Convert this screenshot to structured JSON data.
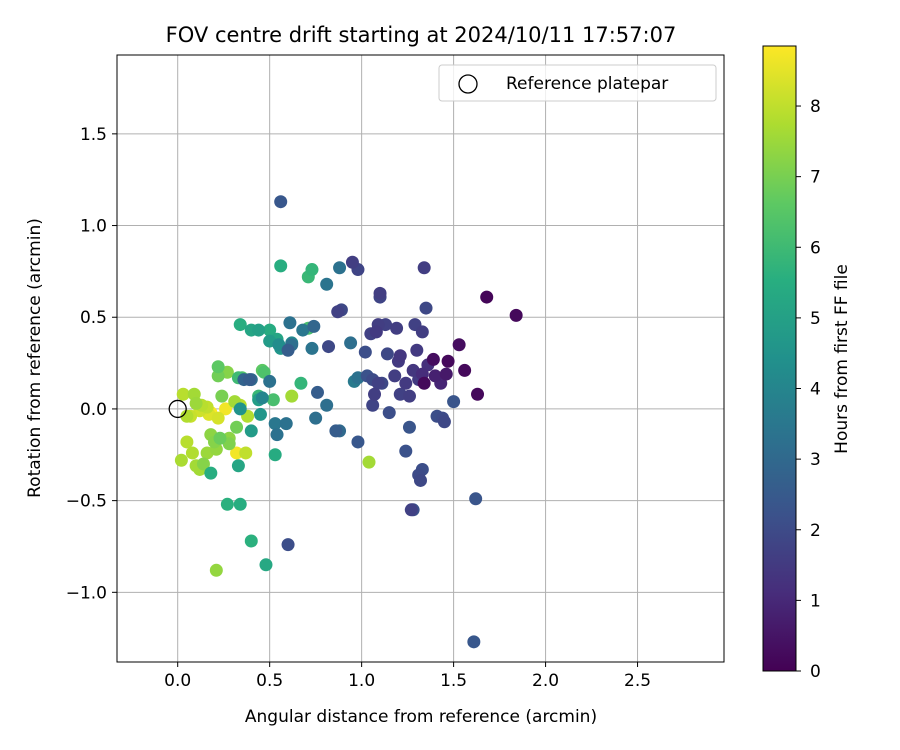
{
  "chart_data": {
    "type": "scatter",
    "title": "FOV centre drift starting at 2024/10/11 17:57:07",
    "xlabel": "Angular distance from reference (arcmin)",
    "ylabel": "Rotation from reference (arcmin)",
    "xlim": [
      -0.33,
      2.97
    ],
    "ylim": [
      -1.38,
      1.93
    ],
    "xticks": [
      0.0,
      0.5,
      1.0,
      1.5,
      2.0,
      2.5
    ],
    "xtick_labels": [
      "0.0",
      "0.5",
      "1.0",
      "1.5",
      "2.0",
      "2.5"
    ],
    "yticks": [
      -1.0,
      -0.5,
      0.0,
      0.5,
      1.0,
      1.5
    ],
    "ytick_labels": [
      "−1.0",
      "−0.5",
      "0.0",
      "0.5",
      "1.0",
      "1.5"
    ],
    "grid": true,
    "legend": {
      "position": "top-right",
      "entries": [
        "Reference platepar"
      ]
    },
    "reference_point": {
      "x": 0.0,
      "y": 0.0
    },
    "colorbar": {
      "label": "Hours from first FF file",
      "colormap": "viridis",
      "range": [
        0,
        8.85
      ],
      "ticks": [
        0,
        1,
        2,
        3,
        4,
        5,
        6,
        7,
        8
      ],
      "tick_labels": [
        "0",
        "1",
        "2",
        "3",
        "4",
        "5",
        "6",
        "7",
        "8"
      ]
    },
    "points": [
      [
        1.68,
        0.61,
        0.1
      ],
      [
        1.84,
        0.51,
        0.2
      ],
      [
        1.47,
        0.26,
        0.2
      ],
      [
        1.39,
        0.27,
        0.3
      ],
      [
        1.53,
        0.35,
        0.3
      ],
      [
        1.56,
        0.21,
        0.2
      ],
      [
        1.63,
        0.08,
        0.2
      ],
      [
        1.34,
        0.14,
        0.2
      ],
      [
        1.46,
        0.19,
        0.6
      ],
      [
        1.4,
        0.18,
        0.8
      ],
      [
        1.43,
        0.14,
        0.9
      ],
      [
        1.33,
        0.19,
        1.1
      ],
      [
        1.36,
        0.24,
        1.2
      ],
      [
        1.28,
        0.21,
        1.4
      ],
      [
        1.31,
        0.16,
        1.5
      ],
      [
        1.24,
        0.14,
        1.5
      ],
      [
        1.26,
        0.07,
        1.6
      ],
      [
        1.21,
        0.08,
        1.7
      ],
      [
        1.18,
        0.18,
        1.6
      ],
      [
        1.2,
        0.26,
        1.5
      ],
      [
        1.21,
        0.29,
        1.4
      ],
      [
        1.14,
        0.3,
        1.9
      ],
      [
        1.3,
        0.32,
        1.5
      ],
      [
        1.33,
        0.42,
        1.6
      ],
      [
        1.29,
        0.46,
        1.7
      ],
      [
        1.35,
        0.55,
        1.9
      ],
      [
        1.34,
        0.77,
        1.6
      ],
      [
        1.19,
        0.44,
        1.6
      ],
      [
        1.13,
        0.46,
        1.7
      ],
      [
        1.09,
        0.46,
        1.6
      ],
      [
        1.08,
        0.42,
        1.5
      ],
      [
        1.1,
        0.63,
        1.6
      ],
      [
        1.1,
        0.61,
        1.8
      ],
      [
        0.95,
        0.8,
        1.6
      ],
      [
        0.98,
        0.76,
        1.8
      ],
      [
        0.89,
        0.54,
        1.9
      ],
      [
        0.87,
        0.53,
        1.7
      ],
      [
        1.05,
        0.41,
        1.7
      ],
      [
        1.02,
        0.31,
        2.1
      ],
      [
        1.03,
        0.18,
        2.2
      ],
      [
        1.06,
        0.16,
        2.0
      ],
      [
        1.11,
        0.14,
        1.9
      ],
      [
        1.09,
        0.14,
        1.7
      ],
      [
        1.07,
        0.08,
        1.6
      ],
      [
        1.06,
        0.02,
        1.8
      ],
      [
        1.15,
        -0.02,
        2.1
      ],
      [
        1.24,
        -0.23,
        2.2
      ],
      [
        1.26,
        -0.1,
        2.3
      ],
      [
        1.31,
        -0.36,
        2.0
      ],
      [
        1.32,
        -0.39,
        1.9
      ],
      [
        1.33,
        -0.33,
        2.1
      ],
      [
        1.27,
        -0.55,
        1.7
      ],
      [
        1.28,
        -0.55,
        2.2
      ],
      [
        1.62,
        -0.49,
        2.3
      ],
      [
        1.61,
        -1.27,
        2.4
      ],
      [
        1.5,
        0.04,
        2.3
      ],
      [
        1.41,
        -0.04,
        2.1
      ],
      [
        1.45,
        -0.07,
        1.9
      ],
      [
        1.44,
        -0.05,
        2.0
      ],
      [
        0.98,
        -0.18,
        2.4
      ],
      [
        0.82,
        0.34,
        1.9
      ],
      [
        0.86,
        -0.12,
        2.6
      ],
      [
        0.88,
        -0.12,
        3.0
      ],
      [
        0.81,
        0.02,
        3.2
      ],
      [
        0.76,
        0.09,
        2.6
      ],
      [
        0.74,
        0.45,
        2.9
      ],
      [
        0.68,
        0.43,
        3.5
      ],
      [
        0.73,
        0.33,
        3.4
      ],
      [
        0.75,
        -0.05,
        3.2
      ],
      [
        0.94,
        0.36,
        3.2
      ],
      [
        0.96,
        0.15,
        3.6
      ],
      [
        0.98,
        0.17,
        3.3
      ],
      [
        0.88,
        0.77,
        3.3
      ],
      [
        0.81,
        0.68,
        3.4
      ],
      [
        0.56,
        1.13,
        2.4
      ],
      [
        0.6,
        -0.74,
        2.1
      ],
      [
        0.53,
        -0.08,
        3.5
      ],
      [
        0.54,
        -0.14,
        3.3
      ],
      [
        0.59,
        -0.08,
        3.3
      ],
      [
        0.5,
        0.15,
        3.3
      ],
      [
        0.39,
        0.16,
        2.6
      ],
      [
        0.36,
        0.16,
        2.8
      ],
      [
        0.4,
        0.16,
        3.1
      ],
      [
        0.6,
        0.32,
        2.6
      ],
      [
        0.62,
        0.35,
        3.2
      ],
      [
        0.61,
        0.47,
        3.3
      ],
      [
        0.62,
        0.36,
        4.1
      ],
      [
        0.55,
        0.35,
        4.3
      ],
      [
        0.56,
        0.33,
        4.6
      ],
      [
        0.5,
        0.37,
        4.8
      ],
      [
        0.54,
        0.38,
        5.2
      ],
      [
        0.5,
        0.43,
        5.4
      ],
      [
        0.44,
        0.43,
        5.0
      ],
      [
        0.4,
        0.43,
        5.2
      ],
      [
        0.34,
        0.46,
        5.5
      ],
      [
        0.46,
        0.06,
        4.0
      ],
      [
        0.45,
        -0.03,
        4.6
      ],
      [
        0.44,
        0.05,
        4.9
      ],
      [
        0.4,
        -0.12,
        4.8
      ],
      [
        0.34,
        0.0,
        4.5
      ],
      [
        0.33,
        -0.31,
        5.2
      ],
      [
        0.34,
        -0.52,
        5.5
      ],
      [
        0.27,
        -0.52,
        5.6
      ],
      [
        0.18,
        -0.35,
        5.5
      ],
      [
        0.4,
        -0.72,
        5.6
      ],
      [
        0.48,
        -0.85,
        5.3
      ],
      [
        0.53,
        -0.25,
        5.4
      ],
      [
        0.56,
        0.78,
        5.5
      ],
      [
        0.71,
        0.72,
        5.9
      ],
      [
        0.73,
        0.76,
        5.8
      ],
      [
        0.67,
        0.14,
        5.8
      ],
      [
        0.71,
        0.44,
        6.2
      ],
      [
        0.47,
        0.2,
        6.3
      ],
      [
        0.46,
        0.21,
        6.6
      ],
      [
        0.52,
        0.05,
        6.2
      ],
      [
        0.44,
        0.07,
        5.9
      ],
      [
        0.33,
        0.17,
        6.0
      ],
      [
        0.35,
        0.17,
        6.4
      ],
      [
        0.22,
        0.23,
        6.6
      ],
      [
        0.27,
        0.2,
        7.2
      ],
      [
        0.22,
        0.18,
        6.9
      ],
      [
        0.24,
        0.07,
        7.0
      ],
      [
        0.2,
        -0.18,
        7.2
      ],
      [
        0.18,
        -0.14,
        7.3
      ],
      [
        0.23,
        -0.16,
        6.8
      ],
      [
        0.32,
        -0.1,
        6.9
      ],
      [
        0.28,
        -0.16,
        7.3
      ],
      [
        0.28,
        -0.19,
        7.1
      ],
      [
        0.21,
        -0.22,
        7.4
      ],
      [
        0.16,
        -0.24,
        7.5
      ],
      [
        0.14,
        -0.3,
        7.2
      ],
      [
        0.1,
        -0.31,
        7.6
      ],
      [
        0.12,
        -0.33,
        7.6
      ],
      [
        0.08,
        -0.24,
        7.8
      ],
      [
        0.05,
        -0.18,
        7.9
      ],
      [
        0.02,
        -0.28,
        7.7
      ],
      [
        0.03,
        0.08,
        7.9
      ],
      [
        0.09,
        0.08,
        7.6
      ],
      [
        0.1,
        0.03,
        7.5
      ],
      [
        0.13,
        0.02,
        7.9
      ],
      [
        0.16,
        0.01,
        8.0
      ],
      [
        0.07,
        -0.04,
        8.1
      ],
      [
        0.05,
        -0.04,
        7.8
      ],
      [
        0.12,
        -0.01,
        8.2
      ],
      [
        0.17,
        -0.03,
        8.4
      ],
      [
        0.22,
        -0.05,
        8.3
      ],
      [
        0.26,
        0.0,
        8.7
      ],
      [
        0.18,
        -0.02,
        8.8
      ],
      [
        0.31,
        0.04,
        7.6
      ],
      [
        0.34,
        0.02,
        7.9
      ],
      [
        0.32,
        -0.24,
        8.7
      ],
      [
        0.37,
        -0.24,
        8.0
      ],
      [
        0.38,
        -0.04,
        7.8
      ],
      [
        0.21,
        -0.88,
        7.4
      ],
      [
        0.62,
        0.07,
        7.6
      ],
      [
        1.04,
        -0.29,
        7.6
      ]
    ]
  }
}
